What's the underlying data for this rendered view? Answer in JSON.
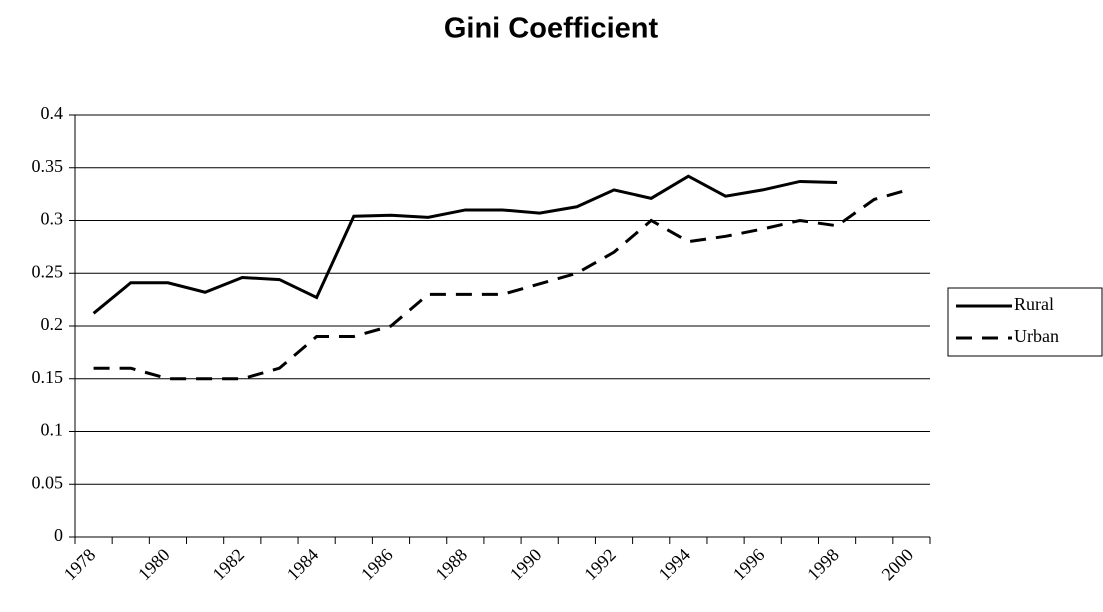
{
  "chart_data": {
    "type": "line",
    "title": "Gini Coefficient",
    "categories": [
      "1978",
      null,
      "1980",
      null,
      "1982",
      null,
      "1984",
      null,
      "1986",
      null,
      "1988",
      null,
      "1990",
      null,
      "1992",
      null,
      "1994",
      null,
      "1996",
      null,
      "1998",
      null,
      "2000"
    ],
    "series": [
      {
        "name": "Rural",
        "color": "#000000",
        "dash": false,
        "values": [
          0.212,
          0.241,
          0.241,
          0.232,
          0.246,
          0.244,
          0.227,
          0.304,
          0.305,
          0.303,
          0.31,
          0.31,
          0.307,
          0.313,
          0.329,
          0.321,
          0.342,
          0.323,
          0.329,
          0.337,
          0.336,
          null,
          null
        ]
      },
      {
        "name": "Urban",
        "color": "#000000",
        "dash": true,
        "values": [
          0.16,
          0.16,
          0.15,
          0.15,
          0.15,
          0.16,
          0.19,
          0.19,
          0.2,
          0.23,
          0.23,
          0.23,
          0.24,
          0.25,
          0.27,
          0.3,
          0.28,
          0.285,
          0.292,
          0.3,
          0.295,
          0.32,
          0.33
        ]
      }
    ],
    "ylim": [
      0,
      0.4
    ],
    "yticks": [
      0,
      0.05,
      0.1,
      0.15,
      0.2,
      0.25,
      0.3,
      0.35,
      0.4
    ],
    "grid": true,
    "legend": "right"
  }
}
